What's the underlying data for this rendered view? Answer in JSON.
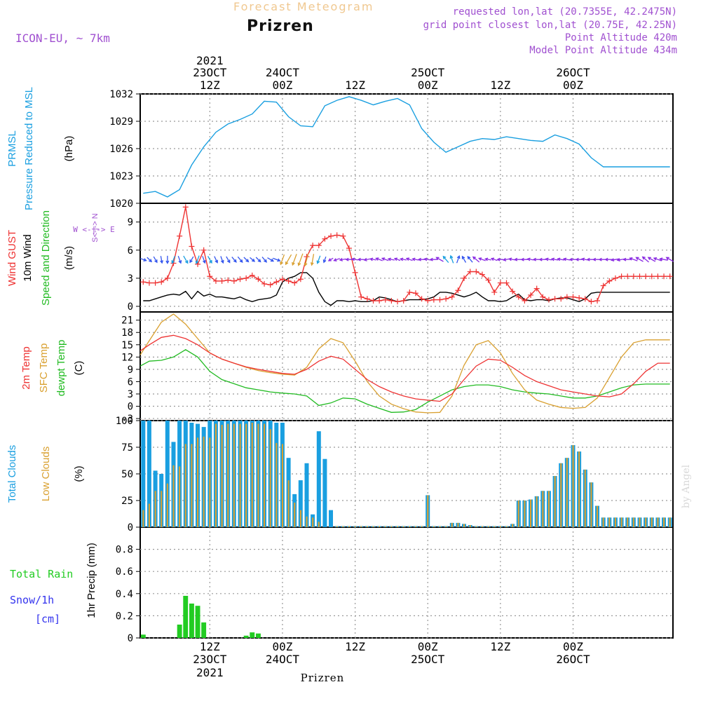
{
  "header": {
    "supertitle": "Forecast Meteogram",
    "title": "Prizren",
    "model": "ICON-EU, ~ 7km",
    "info_lines": [
      "requested lon,lat (20.7355E, 42.2475N)",
      "grid point closest lon,lat (20.75E, 42.25N)",
      "Point Altitude 420m",
      "Model Point Altitude 434m"
    ],
    "footer_label": "Prizren",
    "watermark": "by Angel"
  },
  "time_axis": {
    "top_year": "2021",
    "bottom_year": "2021",
    "ticks": [
      {
        "hour": 12,
        "time": "12Z",
        "date": "23OCT"
      },
      {
        "hour": 24,
        "time": "00Z",
        "date": "24OCT"
      },
      {
        "hour": 36,
        "time": "12Z",
        "date": ""
      },
      {
        "hour": 48,
        "time": "00Z",
        "date": "25OCT"
      },
      {
        "hour": 60,
        "time": "12Z",
        "date": ""
      },
      {
        "hour": 72,
        "time": "00Z",
        "date": "26OCT"
      }
    ],
    "start_hour": 0.5,
    "end_hour": 88.5
  },
  "panel_labels": {
    "pressure": {
      "name": "PRMSL",
      "desc": "Pressure Reduced to MSL",
      "unit": "(hPa)"
    },
    "wind": {
      "gust": "Wind GUST",
      "wind10": "10m Wind",
      "dir": "Speed and Direction",
      "unit": "(m/s)",
      "compass": "W <-|-> E",
      "compass_ns": "S<-|-> N"
    },
    "temp": {
      "t2m": "2m Temp",
      "sfc": "SFC Temp",
      "dew": "dewpt Temp",
      "unit": "(C)"
    },
    "clouds": {
      "total": "Total Clouds",
      "low": "Low Clouds",
      "unit": "(%)"
    },
    "precip": {
      "rain": "Total  Rain",
      "snow": "Snow/1h",
      "snow_unit": "[cm]",
      "axis": "1hr Precip (mm)"
    }
  },
  "colors": {
    "pressure": "#1a9fe0",
    "gust": "#ee3333",
    "wind": "#000000",
    "t2m": "#ee3333",
    "sfc": "#d9a030",
    "dew": "#22bb22",
    "total_clouds": "#1a9fe0",
    "low_clouds": "#d9a030",
    "rain": "#22cc22",
    "snow": "#3333ee",
    "supertitle": "#f0c890",
    "purple": "#a050d0",
    "grid": "#999999"
  },
  "chart_data": [
    {
      "type": "line",
      "title": "Pressure Reduced to MSL",
      "ylabel": "(hPa)",
      "ylim": [
        1020,
        1032
      ],
      "yticks": [
        1020,
        1023,
        1026,
        1029,
        1032
      ],
      "x": [
        1,
        3,
        5,
        7,
        9,
        11,
        13,
        15,
        17,
        19,
        21,
        23,
        25,
        27,
        29,
        31,
        33,
        35,
        37,
        39,
        41,
        43,
        45,
        47,
        49,
        51,
        53,
        55,
        57,
        59,
        61,
        63,
        65,
        67,
        69,
        71,
        73,
        75,
        77,
        79,
        81,
        83,
        85,
        87,
        88
      ],
      "series": [
        {
          "name": "PRMSL",
          "values": [
            1021.1,
            1021.3,
            1020.7,
            1021.5,
            1024.2,
            1026.2,
            1027.8,
            1028.7,
            1029.2,
            1029.8,
            1031.2,
            1031.1,
            1029.5,
            1028.5,
            1028.4,
            1030.7,
            1031.3,
            1031.7,
            1031.3,
            1030.8,
            1031.2,
            1031.5,
            1030.8,
            1028.2,
            1026.7,
            1025.6,
            1026.2,
            1026.8,
            1027.1,
            1027.0,
            1027.3,
            1027.1,
            1026.9,
            1026.8,
            1027.5,
            1027.1,
            1026.5,
            1025.0,
            1024.0,
            1024.0,
            1024.0,
            1024.0,
            1024.0,
            1024.0,
            1024.0
          ]
        }
      ]
    },
    {
      "type": "line",
      "title": "Wind GUST / 10m Wind",
      "ylabel": "(m/s)",
      "ylim": [
        -0.6,
        11
      ],
      "yticks": [
        0,
        3,
        6,
        9
      ],
      "x": [
        1,
        2,
        3,
        4,
        5,
        6,
        7,
        8,
        9,
        10,
        11,
        12,
        13,
        14,
        15,
        16,
        17,
        18,
        19,
        20,
        21,
        22,
        23,
        24,
        25,
        26,
        27,
        28,
        29,
        30,
        31,
        32,
        33,
        34,
        35,
        36,
        37,
        38,
        39,
        40,
        41,
        42,
        43,
        44,
        45,
        46,
        47,
        48,
        49,
        50,
        51,
        52,
        53,
        54,
        55,
        56,
        57,
        58,
        59,
        60,
        61,
        62,
        63,
        64,
        65,
        66,
        67,
        68,
        69,
        70,
        71,
        72,
        73,
        74,
        75,
        76,
        77,
        78,
        79,
        80,
        81,
        82,
        83,
        84,
        85,
        86,
        87,
        88
      ],
      "series": [
        {
          "name": "Wind GUST",
          "values": [
            2.6,
            2.5,
            2.5,
            2.6,
            3.0,
            4.6,
            7.5,
            10.6,
            6.4,
            4.5,
            6.0,
            3.2,
            2.7,
            2.7,
            2.8,
            2.7,
            2.9,
            3.0,
            3.3,
            2.9,
            2.4,
            2.3,
            2.6,
            2.9,
            2.7,
            2.5,
            2.9,
            5.3,
            6.5,
            6.5,
            7.2,
            7.5,
            7.6,
            7.5,
            6.2,
            3.6,
            1.0,
            0.8,
            0.6,
            0.6,
            0.7,
            0.6,
            0.5,
            0.6,
            1.5,
            1.4,
            0.8,
            0.6,
            0.7,
            0.7,
            0.8,
            1.0,
            1.7,
            3.0,
            3.7,
            3.7,
            3.4,
            2.8,
            1.5,
            2.5,
            2.5,
            1.6,
            1.0,
            0.6,
            1.2,
            1.9,
            1.0,
            0.7,
            0.8,
            0.8,
            1.0,
            1.0,
            0.9,
            0.8,
            0.5,
            0.6,
            2.2,
            2.7,
            3.0,
            3.2,
            3.2,
            3.2,
            3.2,
            3.2,
            3.2,
            3.2,
            3.2,
            3.2
          ]
        },
        {
          "name": "10m Wind",
          "values": [
            0.6,
            0.6,
            0.8,
            1.0,
            1.2,
            1.3,
            1.2,
            1.6,
            0.8,
            1.6,
            1.1,
            1.3,
            1.0,
            1.0,
            0.9,
            0.8,
            1.0,
            0.7,
            0.5,
            0.7,
            0.8,
            0.9,
            1.2,
            2.6,
            3.0,
            3.2,
            3.6,
            3.6,
            3.0,
            1.5,
            0.5,
            0.1,
            0.6,
            0.6,
            0.5,
            0.6,
            0.5,
            0.5,
            0.6,
            1.0,
            0.9,
            0.7,
            0.5,
            0.6,
            0.7,
            0.7,
            0.7,
            0.8,
            1.0,
            1.5,
            1.5,
            1.4,
            1.2,
            1.0,
            1.2,
            1.5,
            1.0,
            0.6,
            0.6,
            0.5,
            0.6,
            1.0,
            1.3,
            0.7,
            0.6,
            0.7,
            0.7,
            0.6,
            0.8,
            0.9,
            0.9,
            0.7,
            0.5,
            0.8,
            1.4,
            1.5,
            1.5,
            1.5,
            1.5,
            1.5,
            1.5,
            1.5,
            1.5,
            1.5,
            1.5,
            1.5,
            1.5,
            1.5
          ]
        }
      ]
    },
    {
      "type": "line",
      "title": "2m Temp / SFC Temp / dewpt Temp",
      "ylabel": "(C)",
      "ylim": [
        -3.5,
        23
      ],
      "yticks": [
        -3,
        0,
        3,
        6,
        9,
        12,
        15,
        18,
        21
      ],
      "x": [
        0.5,
        2,
        4,
        6,
        8,
        10,
        12,
        14,
        16,
        18,
        20,
        22,
        24,
        26,
        28,
        30,
        32,
        34,
        36,
        38,
        40,
        42,
        44,
        46,
        48,
        50,
        52,
        54,
        56,
        58,
        60,
        62,
        64,
        66,
        68,
        70,
        72,
        74,
        76,
        78,
        80,
        82,
        84,
        86,
        88
      ],
      "series": [
        {
          "name": "2m Temp",
          "values": [
            13.5,
            15.0,
            16.8,
            17.3,
            16.5,
            15.0,
            13.0,
            11.5,
            10.5,
            9.6,
            9.0,
            8.5,
            8.0,
            7.8,
            9.0,
            11.0,
            12.2,
            11.5,
            9.0,
            6.5,
            4.8,
            3.5,
            2.5,
            1.8,
            1.5,
            1.2,
            3.0,
            6.5,
            9.8,
            11.5,
            11.2,
            9.5,
            7.5,
            6.0,
            5.0,
            4.0,
            3.5,
            3.0,
            2.5,
            2.3,
            3.0,
            5.5,
            8.5,
            10.5,
            10.5
          ]
        },
        {
          "name": "SFC Temp",
          "values": [
            12.5,
            16.0,
            20.5,
            22.5,
            20.0,
            16.5,
            13.0,
            11.5,
            10.5,
            9.5,
            8.7,
            8.2,
            7.8,
            7.6,
            9.5,
            14.0,
            16.5,
            15.5,
            11.0,
            6.0,
            2.5,
            0.5,
            -0.6,
            -1.4,
            -1.6,
            -1.5,
            2.5,
            10.0,
            15.0,
            16.0,
            13.0,
            8.0,
            4.0,
            1.5,
            0.5,
            -0.3,
            -0.5,
            -0.3,
            2.0,
            7.0,
            12.0,
            15.5,
            16.2,
            16.2,
            16.2
          ]
        },
        {
          "name": "dewpt Temp",
          "values": [
            9.8,
            11.0,
            11.2,
            12.0,
            13.8,
            12.0,
            8.5,
            6.5,
            5.5,
            4.5,
            4.0,
            3.5,
            3.2,
            3.0,
            2.5,
            0.2,
            0.8,
            2.0,
            1.8,
            0.5,
            -0.5,
            -1.5,
            -1.4,
            -0.8,
            1.0,
            2.5,
            4.0,
            4.8,
            5.2,
            5.2,
            4.8,
            4.0,
            3.5,
            3.2,
            3.0,
            2.5,
            2.0,
            2.0,
            2.5,
            3.5,
            4.5,
            5.2,
            5.4,
            5.4,
            5.4
          ]
        }
      ]
    },
    {
      "type": "bar",
      "title": "Total Clouds / Low Clouds",
      "ylabel": "(%)",
      "ylim": [
        0,
        100
      ],
      "yticks": [
        0,
        25,
        50,
        75,
        100
      ],
      "x": [
        1,
        2,
        3,
        4,
        5,
        6,
        7,
        8,
        9,
        10,
        11,
        12,
        13,
        14,
        15,
        16,
        17,
        18,
        19,
        20,
        21,
        22,
        23,
        24,
        25,
        26,
        27,
        28,
        29,
        30,
        31,
        32,
        33,
        34,
        35,
        36,
        37,
        38,
        39,
        40,
        41,
        42,
        43,
        44,
        45,
        46,
        47,
        48,
        49,
        50,
        51,
        52,
        53,
        54,
        55,
        56,
        57,
        58,
        59,
        60,
        61,
        62,
        63,
        64,
        65,
        66,
        67,
        68,
        69,
        70,
        71,
        72,
        73,
        74,
        75,
        76,
        77,
        78,
        79,
        80,
        81,
        82,
        83,
        84,
        85,
        86,
        87,
        88
      ],
      "series": [
        {
          "name": "Total Clouds",
          "values": [
            100,
            100,
            53,
            50,
            100,
            80,
            100,
            100,
            98,
            97,
            94,
            100,
            100,
            100,
            100,
            100,
            100,
            100,
            100,
            100,
            100,
            100,
            98,
            98,
            65,
            31,
            44,
            60,
            12,
            90,
            64,
            16,
            1,
            1,
            1,
            1,
            1,
            1,
            1,
            1,
            1,
            1,
            1,
            1,
            1,
            1,
            1,
            30,
            1,
            1,
            1,
            4,
            4,
            3,
            2,
            1,
            1,
            1,
            1,
            1,
            1,
            3,
            25,
            25,
            26,
            29,
            34,
            34,
            48,
            60,
            65,
            77,
            71,
            54,
            42,
            20,
            9,
            9,
            9,
            9,
            9,
            9,
            9,
            9,
            9,
            9,
            9,
            9
          ]
        },
        {
          "name": "Low Clouds",
          "values": [
            16,
            22,
            34,
            34,
            41,
            58,
            57,
            78,
            78,
            84,
            85,
            84,
            97,
            96,
            97,
            97,
            97,
            97,
            98,
            97,
            97,
            92,
            79,
            78,
            44,
            23,
            16,
            10,
            9,
            5,
            0,
            0,
            1,
            1,
            1,
            1,
            1,
            1,
            1,
            1,
            1,
            1,
            1,
            1,
            1,
            1,
            1,
            30,
            1,
            1,
            1,
            4,
            4,
            3,
            2,
            1,
            1,
            1,
            1,
            1,
            1,
            3,
            25,
            25,
            26,
            29,
            34,
            34,
            48,
            60,
            65,
            77,
            71,
            54,
            42,
            20,
            9,
            9,
            9,
            9,
            9,
            9,
            9,
            9,
            9,
            9,
            9,
            9
          ]
        }
      ]
    },
    {
      "type": "bar",
      "title": "1hr Precip (mm)",
      "ylabel": "1hr Precip (mm)",
      "ylim": [
        0,
        1.0
      ],
      "yticks": [
        0,
        0.2,
        0.4,
        0.6,
        0.8
      ],
      "x": [
        1,
        7,
        8,
        9,
        10,
        11,
        18,
        19,
        20
      ],
      "series": [
        {
          "name": "Total Rain",
          "values": [
            0.03,
            0.12,
            0.38,
            0.31,
            0.29,
            0.14,
            0.02,
            0.05,
            0.04
          ]
        }
      ]
    }
  ],
  "wind_arrows": {
    "units": "m/s",
    "note": "direction in degrees the wind blows toward (0 = N, 90 = E)",
    "x": [
      1,
      2,
      3,
      4,
      5,
      6,
      7,
      8,
      9,
      10,
      11,
      12,
      13,
      14,
      15,
      16,
      17,
      18,
      19,
      20,
      21,
      22,
      23,
      24,
      25,
      26,
      27,
      28,
      29,
      30,
      31,
      32,
      33,
      34,
      35,
      36,
      37,
      38,
      39,
      40,
      41,
      42,
      43,
      44,
      45,
      46,
      47,
      48,
      49,
      50,
      51,
      52,
      53,
      54,
      55,
      56,
      57,
      58,
      59,
      60,
      61,
      62,
      63,
      64,
      65,
      66,
      67,
      68,
      69,
      70,
      71,
      72,
      73,
      74,
      75,
      76,
      77,
      78,
      79,
      80,
      81,
      82,
      83,
      84,
      85,
      86,
      87,
      88
    ],
    "dir": [
      110,
      135,
      150,
      170,
      180,
      200,
      160,
      150,
      210,
      200,
      160,
      150,
      155,
      160,
      150,
      140,
      140,
      135,
      130,
      135,
      140,
      120,
      110,
      200,
      210,
      200,
      200,
      195,
      190,
      200,
      200,
      240,
      250,
      260,
      270,
      280,
      270,
      260,
      280,
      290,
      290,
      280,
      290,
      280,
      290,
      280,
      270,
      280,
      270,
      300,
      320,
      340,
      20,
      330,
      320,
      310,
      290,
      280,
      290,
      270,
      260,
      280,
      270,
      270,
      280,
      270,
      270,
      280,
      280,
      280,
      280,
      270,
      270,
      280,
      270,
      270,
      270,
      270,
      260,
      260,
      270,
      290,
      300,
      310,
      300,
      290,
      280,
      300
    ],
    "speed": [
      0.6,
      0.6,
      0.8,
      1.0,
      1.2,
      1.3,
      1.2,
      1.6,
      0.8,
      1.6,
      1.1,
      1.3,
      1.0,
      1.0,
      0.9,
      0.8,
      1.0,
      0.7,
      0.5,
      0.7,
      0.8,
      0.9,
      1.2,
      2.6,
      3.0,
      3.2,
      3.6,
      3.6,
      3.0,
      1.5,
      0.5,
      0.1,
      0.6,
      0.6,
      0.5,
      0.6,
      0.5,
      0.5,
      0.6,
      1.0,
      0.9,
      0.7,
      0.5,
      0.6,
      0.7,
      0.7,
      0.7,
      0.8,
      1.0,
      1.5,
      1.5,
      1.4,
      1.2,
      1.0,
      1.2,
      1.5,
      1.0,
      0.6,
      0.6,
      0.5,
      0.6,
      1.0,
      1.3,
      0.7,
      0.6,
      0.7,
      0.7,
      0.6,
      0.8,
      0.9,
      0.9,
      0.7,
      0.5,
      0.8,
      1.4,
      1.5,
      1.5,
      1.5,
      1.5,
      1.5,
      1.5,
      1.5,
      1.5,
      1.5,
      1.5,
      1.5,
      1.5,
      1.5
    ]
  }
}
